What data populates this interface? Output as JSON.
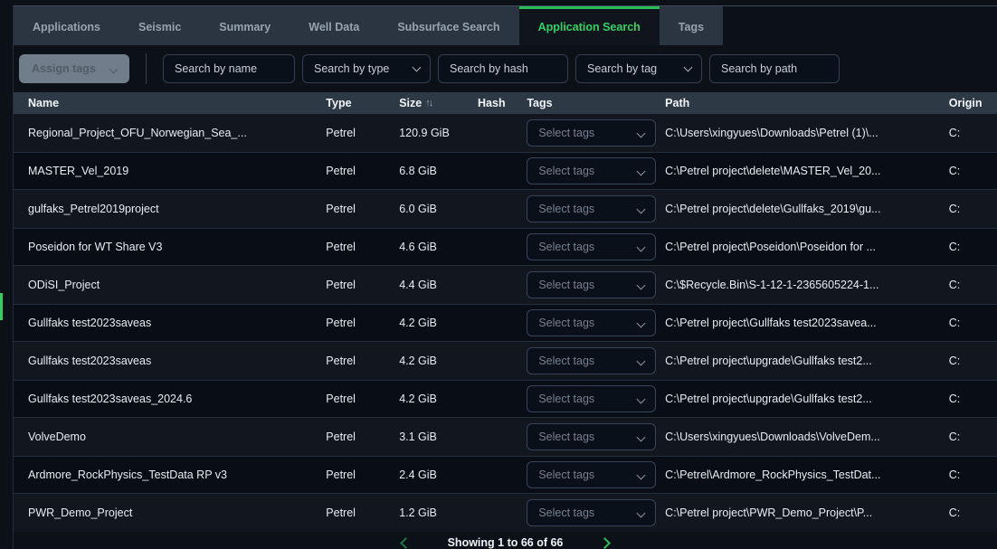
{
  "tabs": {
    "items": [
      {
        "label": "Applications",
        "active": false
      },
      {
        "label": "Seismic",
        "active": false
      },
      {
        "label": "Summary",
        "active": false
      },
      {
        "label": "Well Data",
        "active": false
      },
      {
        "label": "Subsurface Search",
        "active": false
      },
      {
        "label": "Application Search",
        "active": true
      },
      {
        "label": "Tags",
        "active": false
      }
    ]
  },
  "filter_bar": {
    "assign_tags_label": "Assign tags",
    "inputs": [
      {
        "placeholder": "Search by name",
        "dropdown": false,
        "cls": "w-name"
      },
      {
        "placeholder": "Search by type",
        "dropdown": true,
        "cls": "w-type"
      },
      {
        "placeholder": "Search by hash",
        "dropdown": false,
        "cls": "w-hash"
      },
      {
        "placeholder": "Search by tag",
        "dropdown": true,
        "cls": "w-tag"
      },
      {
        "placeholder": "Search by path",
        "dropdown": false,
        "cls": "w-path"
      }
    ]
  },
  "table": {
    "columns": [
      "Name",
      "Type",
      "Size",
      "Hash",
      "Tags",
      "Path",
      "Origin"
    ],
    "sort_column": "Size",
    "sort_icon": "↑↓",
    "tags_placeholder": "Select tags",
    "rows": [
      {
        "name": "Regional_Project_OFU_Norwegian_Sea_...",
        "type": "Petrel",
        "size": "120.9 GiB",
        "hash": "",
        "path": "C:\\Users\\xingyues\\Downloads\\Petrel (1)\\...",
        "origin": "C:"
      },
      {
        "name": "MASTER_Vel_2019",
        "type": "Petrel",
        "size": "6.8 GiB",
        "hash": "",
        "path": "C:\\Petrel project\\delete\\MASTER_Vel_20...",
        "origin": "C:"
      },
      {
        "name": "gulfaks_Petrel2019project",
        "type": "Petrel",
        "size": "6.0 GiB",
        "hash": "",
        "path": "C:\\Petrel project\\delete\\Gullfaks_2019\\gu...",
        "origin": "C:"
      },
      {
        "name": "Poseidon for WT Share V3",
        "type": "Petrel",
        "size": "4.6 GiB",
        "hash": "",
        "path": "C:\\Petrel project\\Poseidon\\Poseidon for ...",
        "origin": "C:"
      },
      {
        "name": "ODiSI_Project",
        "type": "Petrel",
        "size": "4.4 GiB",
        "hash": "",
        "path": "C:\\$Recycle.Bin\\S-1-12-1-2365605224-1...",
        "origin": "C:"
      },
      {
        "name": "Gullfaks test2023saveas",
        "type": "Petrel",
        "size": "4.2 GiB",
        "hash": "",
        "path": "C:\\Petrel project\\Gullfaks test2023savea...",
        "origin": "C:"
      },
      {
        "name": "Gullfaks test2023saveas",
        "type": "Petrel",
        "size": "4.2 GiB",
        "hash": "",
        "path": "C:\\Petrel project\\upgrade\\Gullfaks test2...",
        "origin": "C:"
      },
      {
        "name": "Gullfaks test2023saveas_2024.6",
        "type": "Petrel",
        "size": "4.2 GiB",
        "hash": "",
        "path": "C:\\Petrel project\\upgrade\\Gullfaks test2...",
        "origin": "C:"
      },
      {
        "name": "VolveDemo",
        "type": "Petrel",
        "size": "3.1 GiB",
        "hash": "",
        "path": "C:\\Users\\xingyues\\Downloads\\VolveDem...",
        "origin": "C:"
      },
      {
        "name": "Ardmore_RockPhysics_TestData RP v3",
        "type": "Petrel",
        "size": "2.4 GiB",
        "hash": "",
        "path": "C:\\Petrel\\Ardmore_RockPhysics_TestDat...",
        "origin": "C:"
      },
      {
        "name": "PWR_Demo_Project",
        "type": "Petrel",
        "size": "1.2 GiB",
        "hash": "",
        "path": "C:\\Petrel project\\PWR_Demo_Project\\P...",
        "origin": "C:"
      }
    ]
  },
  "pagination": {
    "text": "Showing 1 to 66 of 66"
  },
  "colors": {
    "accent_green": "#2fd363",
    "page_bg": "#0c1118",
    "tab_strip_bg": "#2b3541",
    "header_bg": "#2d3945",
    "row_odd": "#12171f",
    "row_even": "#090d16"
  }
}
